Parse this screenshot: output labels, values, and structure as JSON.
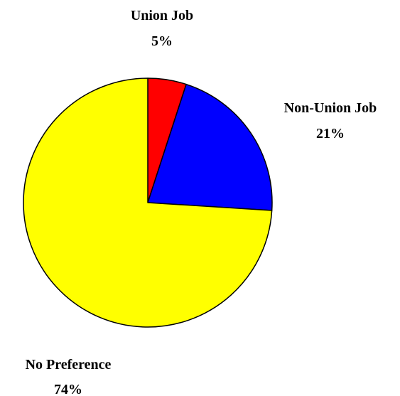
{
  "chart_data": {
    "type": "pie",
    "title": "",
    "start_angle_deg": 90,
    "direction": "clockwise",
    "slices": [
      {
        "label": "Union Job",
        "value": 5,
        "display": "5%",
        "color": "#FF0000"
      },
      {
        "label": "Non-Union Job",
        "value": 21,
        "display": "21%",
        "color": "#0000FF"
      },
      {
        "label": "No Preference",
        "value": 74,
        "display": "74%",
        "color": "#FFFF00"
      }
    ],
    "legend": "none",
    "outline_color": "#000000"
  }
}
